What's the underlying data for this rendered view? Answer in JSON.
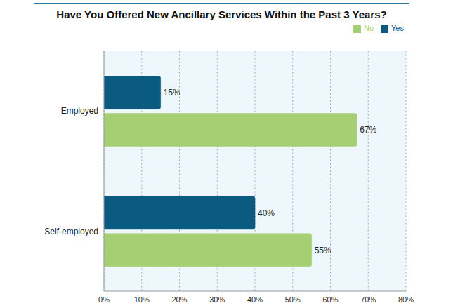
{
  "chart_data": {
    "type": "bar",
    "title": "Have You Offered New Ancillary Services Within the Past 3 Years?",
    "orientation": "horizontal",
    "categories": [
      "Employed",
      "Self-employed"
    ],
    "series": [
      {
        "name": "Yes",
        "color": "#0b5a80",
        "values": [
          15,
          40
        ],
        "value_labels": [
          "15%",
          "40%"
        ]
      },
      {
        "name": "No",
        "color": "#a6cf74",
        "values": [
          67,
          55
        ],
        "value_labels": [
          "67%",
          "55%"
        ]
      }
    ],
    "xlim": [
      0,
      80
    ],
    "xticks": [
      {
        "value": 0,
        "label": "0%"
      },
      {
        "value": 10,
        "label": "10%"
      },
      {
        "value": 20,
        "label": "20%"
      },
      {
        "value": 30,
        "label": "30%"
      },
      {
        "value": 40,
        "label": "40%"
      },
      {
        "value": 50,
        "label": "50%"
      },
      {
        "value": 60,
        "label": "60%"
      },
      {
        "value": 70,
        "label": "70%"
      },
      {
        "value": 80,
        "label": "80%"
      }
    ],
    "grid": true,
    "legend": "upper right",
    "data_labels": true
  }
}
